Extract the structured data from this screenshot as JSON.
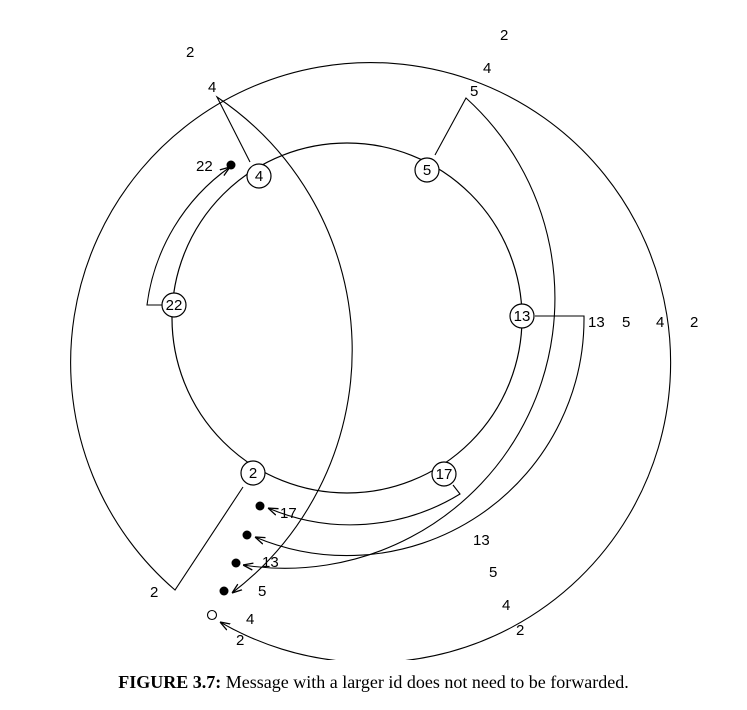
{
  "nodes": [
    {
      "id": "4",
      "label": "4"
    },
    {
      "id": "5",
      "label": "5"
    },
    {
      "id": "13",
      "label": "13"
    },
    {
      "id": "17",
      "label": "17"
    },
    {
      "id": "2",
      "label": "2"
    },
    {
      "id": "22",
      "label": "22"
    }
  ],
  "message_paths": [
    {
      "id": "22",
      "labels": {
        "end": "22"
      }
    },
    {
      "id": "4",
      "labels": {
        "start": "4",
        "right": "4",
        "lower": "4",
        "end": "4"
      }
    },
    {
      "id": "5",
      "labels": {
        "start": "5",
        "right": "5",
        "lower": "5",
        "end": "5"
      }
    },
    {
      "id": "13",
      "labels": {
        "right": "13",
        "lower": "13",
        "end": "13"
      }
    },
    {
      "id": "17",
      "labels": {
        "end": "17"
      }
    },
    {
      "id": "2",
      "labels": {
        "top": "2",
        "top_left": "2",
        "right": "2",
        "lower": "2",
        "start": "2",
        "end": "2"
      }
    }
  ],
  "caption": {
    "label": "FIGURE 3.7:",
    "text": "Message with a larger id does not need to be forwarded."
  }
}
